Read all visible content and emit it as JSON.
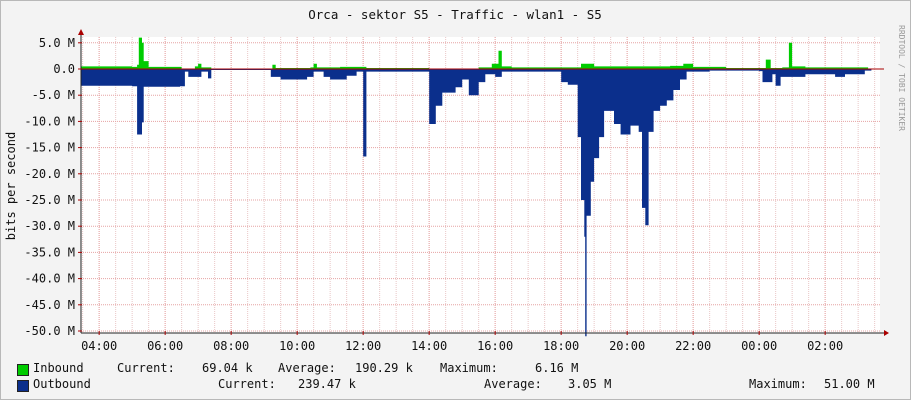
{
  "chart_data": {
    "type": "area",
    "title": "Orca - sektor S5 - Traffic - wlan1 - S5",
    "ylabel": "bits per second",
    "watermark": "RRDTOOL / TOBI OETIKER",
    "ylim": [
      -51,
      6.5
    ],
    "y_ticks": [
      {
        "v": 5,
        "label": "5.0 M"
      },
      {
        "v": 0,
        "label": "0.0"
      },
      {
        "v": -5,
        "label": "-5.0 M"
      },
      {
        "v": -10,
        "label": "-10.0 M"
      },
      {
        "v": -15,
        "label": "-15.0 M"
      },
      {
        "v": -20,
        "label": "-20.0 M"
      },
      {
        "v": -25,
        "label": "-25.0 M"
      },
      {
        "v": -30,
        "label": "-30.0 M"
      },
      {
        "v": -35,
        "label": "-35.0 M"
      },
      {
        "v": -40,
        "label": "-40.0 M"
      },
      {
        "v": -45,
        "label": "-45.0 M"
      },
      {
        "v": -50,
        "label": "-50.0 M"
      }
    ],
    "x_ticks": [
      "04:00",
      "06:00",
      "08:00",
      "10:00",
      "12:00",
      "14:00",
      "16:00",
      "18:00",
      "20:00",
      "22:00",
      "00:00",
      "02:00"
    ],
    "x_range_hours": [
      3.4,
      27.5
    ],
    "series": [
      {
        "name": "Inbound",
        "color": "#00cc00",
        "points": [
          [
            3.45,
            0.5
          ],
          [
            5.0,
            0.4
          ],
          [
            5.15,
            0.8
          ],
          [
            5.2,
            6.0
          ],
          [
            5.3,
            5.0
          ],
          [
            5.35,
            1.5
          ],
          [
            5.5,
            0.4
          ],
          [
            6.5,
            0
          ],
          [
            6.7,
            -0.3
          ],
          [
            6.9,
            0.5
          ],
          [
            7.0,
            1.0
          ],
          [
            7.1,
            0.3
          ],
          [
            7.4,
            0
          ],
          [
            9.2,
            0
          ],
          [
            9.25,
            0.8
          ],
          [
            9.35,
            0.2
          ],
          [
            10.4,
            0.3
          ],
          [
            10.5,
            1.0
          ],
          [
            10.6,
            0.3
          ],
          [
            11.0,
            0.3
          ],
          [
            11.3,
            0.4
          ],
          [
            12.1,
            0.2
          ],
          [
            14.0,
            0.1
          ],
          [
            15.5,
            0.3
          ],
          [
            15.9,
            1.0
          ],
          [
            16.1,
            3.5
          ],
          [
            16.2,
            0.5
          ],
          [
            16.5,
            0.3
          ],
          [
            18.0,
            0.3
          ],
          [
            18.6,
            1.0
          ],
          [
            19.0,
            0.5
          ],
          [
            20.0,
            0.5
          ],
          [
            21.3,
            0.6
          ],
          [
            21.7,
            1.0
          ],
          [
            22.0,
            0.4
          ],
          [
            23.0,
            0.2
          ],
          [
            24.0,
            0.2
          ],
          [
            24.2,
            1.8
          ],
          [
            24.35,
            0.2
          ],
          [
            24.7,
            0.3
          ],
          [
            24.9,
            5.0
          ],
          [
            25.0,
            0.5
          ],
          [
            25.4,
            0.3
          ],
          [
            26.3,
            0.3
          ],
          [
            27.3,
            0.2
          ]
        ]
      },
      {
        "name": "Outbound",
        "color": "#0b2f8c",
        "points": [
          [
            3.45,
            -3.2
          ],
          [
            4.5,
            -3.2
          ],
          [
            5.0,
            -3.3
          ],
          [
            5.15,
            -12.5
          ],
          [
            5.3,
            -10.2
          ],
          [
            5.35,
            -3.4
          ],
          [
            6.2,
            -3.4
          ],
          [
            6.45,
            -3.3
          ],
          [
            6.6,
            -0.5
          ],
          [
            6.7,
            -1.5
          ],
          [
            6.9,
            -1.5
          ],
          [
            7.1,
            -0.5
          ],
          [
            7.3,
            -1.8
          ],
          [
            7.4,
            -0.2
          ],
          [
            9.2,
            -1.5
          ],
          [
            9.5,
            -2.0
          ],
          [
            10.0,
            -2.0
          ],
          [
            10.3,
            -1.5
          ],
          [
            10.5,
            -0.5
          ],
          [
            10.8,
            -1.5
          ],
          [
            11.0,
            -2.0
          ],
          [
            11.5,
            -1.3
          ],
          [
            11.8,
            -0.5
          ],
          [
            12.0,
            -16.7
          ],
          [
            12.1,
            -0.5
          ],
          [
            14.0,
            -10.5
          ],
          [
            14.2,
            -7.0
          ],
          [
            14.4,
            -4.5
          ],
          [
            14.8,
            -3.5
          ],
          [
            15.0,
            -2.0
          ],
          [
            15.2,
            -5.0
          ],
          [
            15.5,
            -2.5
          ],
          [
            15.7,
            -1.0
          ],
          [
            16.0,
            -1.5
          ],
          [
            16.2,
            -0.5
          ],
          [
            18.0,
            -2.5
          ],
          [
            18.2,
            -3.0
          ],
          [
            18.5,
            -13.0
          ],
          [
            18.6,
            -25.0
          ],
          [
            18.7,
            -32.0
          ],
          [
            18.73,
            -51.0
          ],
          [
            18.77,
            -28.0
          ],
          [
            18.9,
            -21.5
          ],
          [
            19.0,
            -17.0
          ],
          [
            19.15,
            -13.0
          ],
          [
            19.3,
            -8.0
          ],
          [
            19.6,
            -10.5
          ],
          [
            19.8,
            -12.5
          ],
          [
            20.1,
            -10.8
          ],
          [
            20.35,
            -12.0
          ],
          [
            20.45,
            -26.5
          ],
          [
            20.55,
            -29.8
          ],
          [
            20.65,
            -12.0
          ],
          [
            20.8,
            -8.0
          ],
          [
            21.0,
            -7.0
          ],
          [
            21.2,
            -6.0
          ],
          [
            21.4,
            -4.0
          ],
          [
            21.6,
            -2.0
          ],
          [
            21.8,
            -0.5
          ],
          [
            22.5,
            -0.3
          ],
          [
            24.0,
            -0.4
          ],
          [
            24.1,
            -2.5
          ],
          [
            24.4,
            -1.0
          ],
          [
            24.5,
            -3.2
          ],
          [
            24.65,
            -1.5
          ],
          [
            25.0,
            -1.5
          ],
          [
            25.4,
            -1.0
          ],
          [
            26.3,
            -1.5
          ],
          [
            26.6,
            -1.0
          ],
          [
            27.2,
            -0.3
          ],
          [
            27.4,
            -0.5
          ]
        ]
      }
    ],
    "legend": [
      {
        "name": "Inbound",
        "color": "#00cc00",
        "current_label": "Current:",
        "current": "69.04 k",
        "average_label": "Average:",
        "average": "190.29 k",
        "maximum_label": "Maximum:",
        "maximum": "6.16 M"
      },
      {
        "name": "Outbound",
        "color": "#0b2f8c",
        "current_label": "Current:",
        "current": "239.47 k",
        "average_label": "Average:",
        "average": "3.05 M",
        "maximum_label": "Maximum:",
        "maximum": "51.00 M"
      }
    ]
  }
}
